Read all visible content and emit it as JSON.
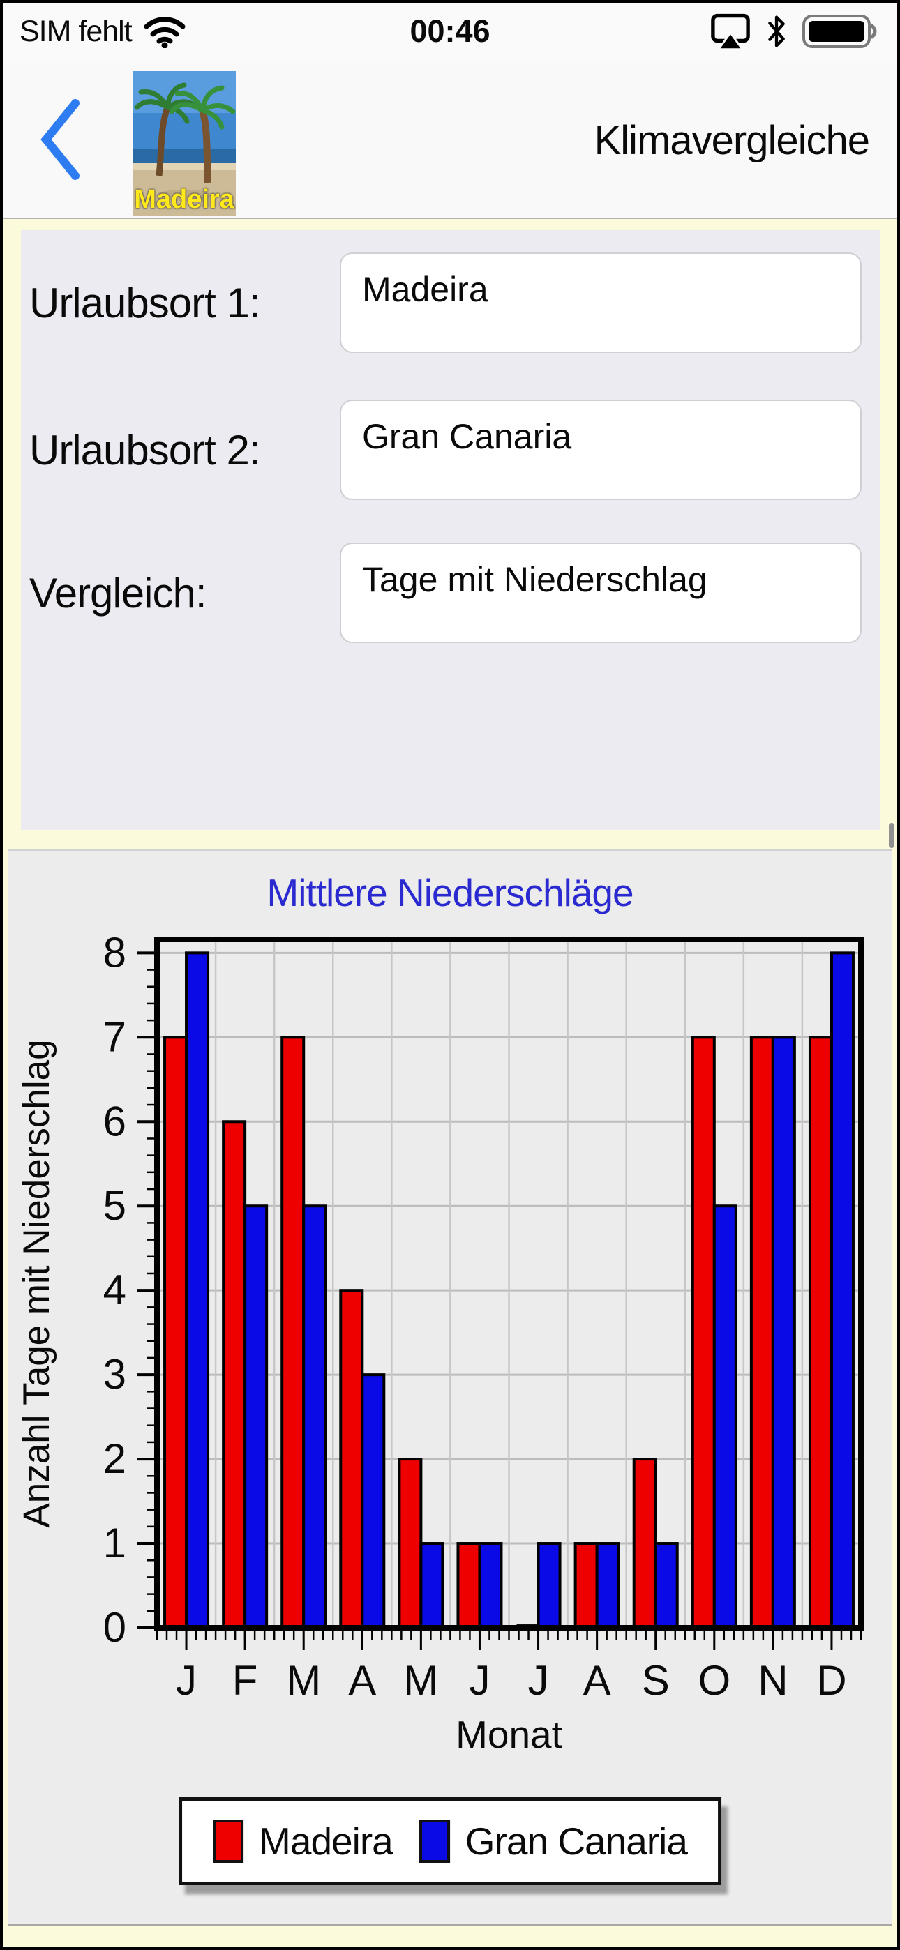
{
  "status_bar": {
    "carrier": "SIM fehlt",
    "time": "00:46",
    "icons": [
      "wifi-icon",
      "screen-mirroring-icon",
      "bluetooth-icon",
      "battery-icon"
    ],
    "battery_level": "full"
  },
  "nav_bar": {
    "title": "Klimavergleiche",
    "back_icon": "chevron-left-icon",
    "app_icon_label": "Madeira"
  },
  "form": {
    "rows": [
      {
        "label": "Urlaubsort 1:",
        "value": "Madeira"
      },
      {
        "label": "Urlaubsort 2:",
        "value": "Gran Canaria"
      },
      {
        "label": "Vergleich:",
        "value": "Tage mit Niederschlag"
      }
    ]
  },
  "chart_data": {
    "type": "bar",
    "title": "Mittlere Niederschläge",
    "xlabel": "Monat",
    "ylabel": "Anzahl Tage mit Niederschlag",
    "categories": [
      "J",
      "F",
      "M",
      "A",
      "M",
      "J",
      "J",
      "A",
      "S",
      "O",
      "N",
      "D"
    ],
    "series": [
      {
        "name": "Madeira",
        "color": "#ee0000",
        "values": [
          7,
          6,
          7,
          4,
          2,
          1,
          0,
          1,
          2,
          7,
          7,
          7
        ]
      },
      {
        "name": "Gran Canaria",
        "color": "#0a0ae6",
        "values": [
          8,
          5,
          5,
          3,
          1,
          1,
          1,
          1,
          1,
          5,
          7,
          8
        ]
      }
    ],
    "ylim": [
      0,
      8.16
    ],
    "yticks": [
      0,
      1,
      2,
      3,
      4,
      5,
      6,
      7,
      8
    ],
    "grid": true,
    "legend_position": "bottom",
    "title_color": "#2a2ad0"
  },
  "colors": {
    "ios_accent_blue": "#2e7cf2",
    "form_bg_yellow": "#fbfbdc",
    "form_panel": "#ebebf1",
    "chart_panel": "#ececec"
  }
}
